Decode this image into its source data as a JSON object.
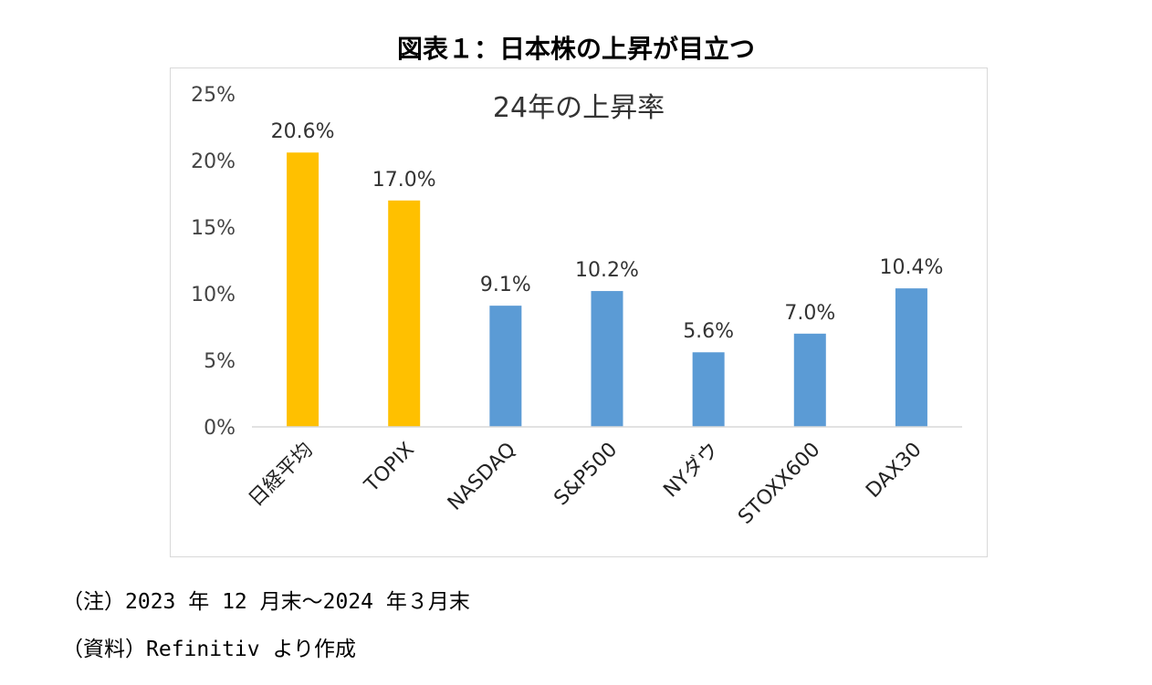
{
  "figure_title": "図表１：日本株の上昇が目立つ",
  "notes": {
    "note_1": "（注）2023 年 12 月末～2024 年３月末",
    "note_2": "（資料）Refinitiv より作成"
  },
  "chart_data": {
    "type": "bar",
    "title": "24年の上昇率",
    "categories": [
      "日経平均",
      "TOPIX",
      "NASDAQ",
      "S&P500",
      "NYダウ",
      "STOXX600",
      "DAX30"
    ],
    "values": [
      20.6,
      17.0,
      9.1,
      10.2,
      5.6,
      7.0,
      10.4
    ],
    "data_labels": [
      "20.6%",
      "17.0%",
      "9.1%",
      "10.2%",
      "5.6%",
      "7.0%",
      "10.4%"
    ],
    "bar_colors": [
      "#FFC000",
      "#FFC000",
      "#5B9BD5",
      "#5B9BD5",
      "#5B9BD5",
      "#5B9BD5",
      "#5B9BD5"
    ],
    "ylim": [
      0,
      25
    ],
    "yticks": [
      0,
      5,
      10,
      15,
      20,
      25
    ],
    "ytick_labels": [
      "0%",
      "5%",
      "10%",
      "15%",
      "20%",
      "25%"
    ],
    "grid": false,
    "legend": "none"
  }
}
